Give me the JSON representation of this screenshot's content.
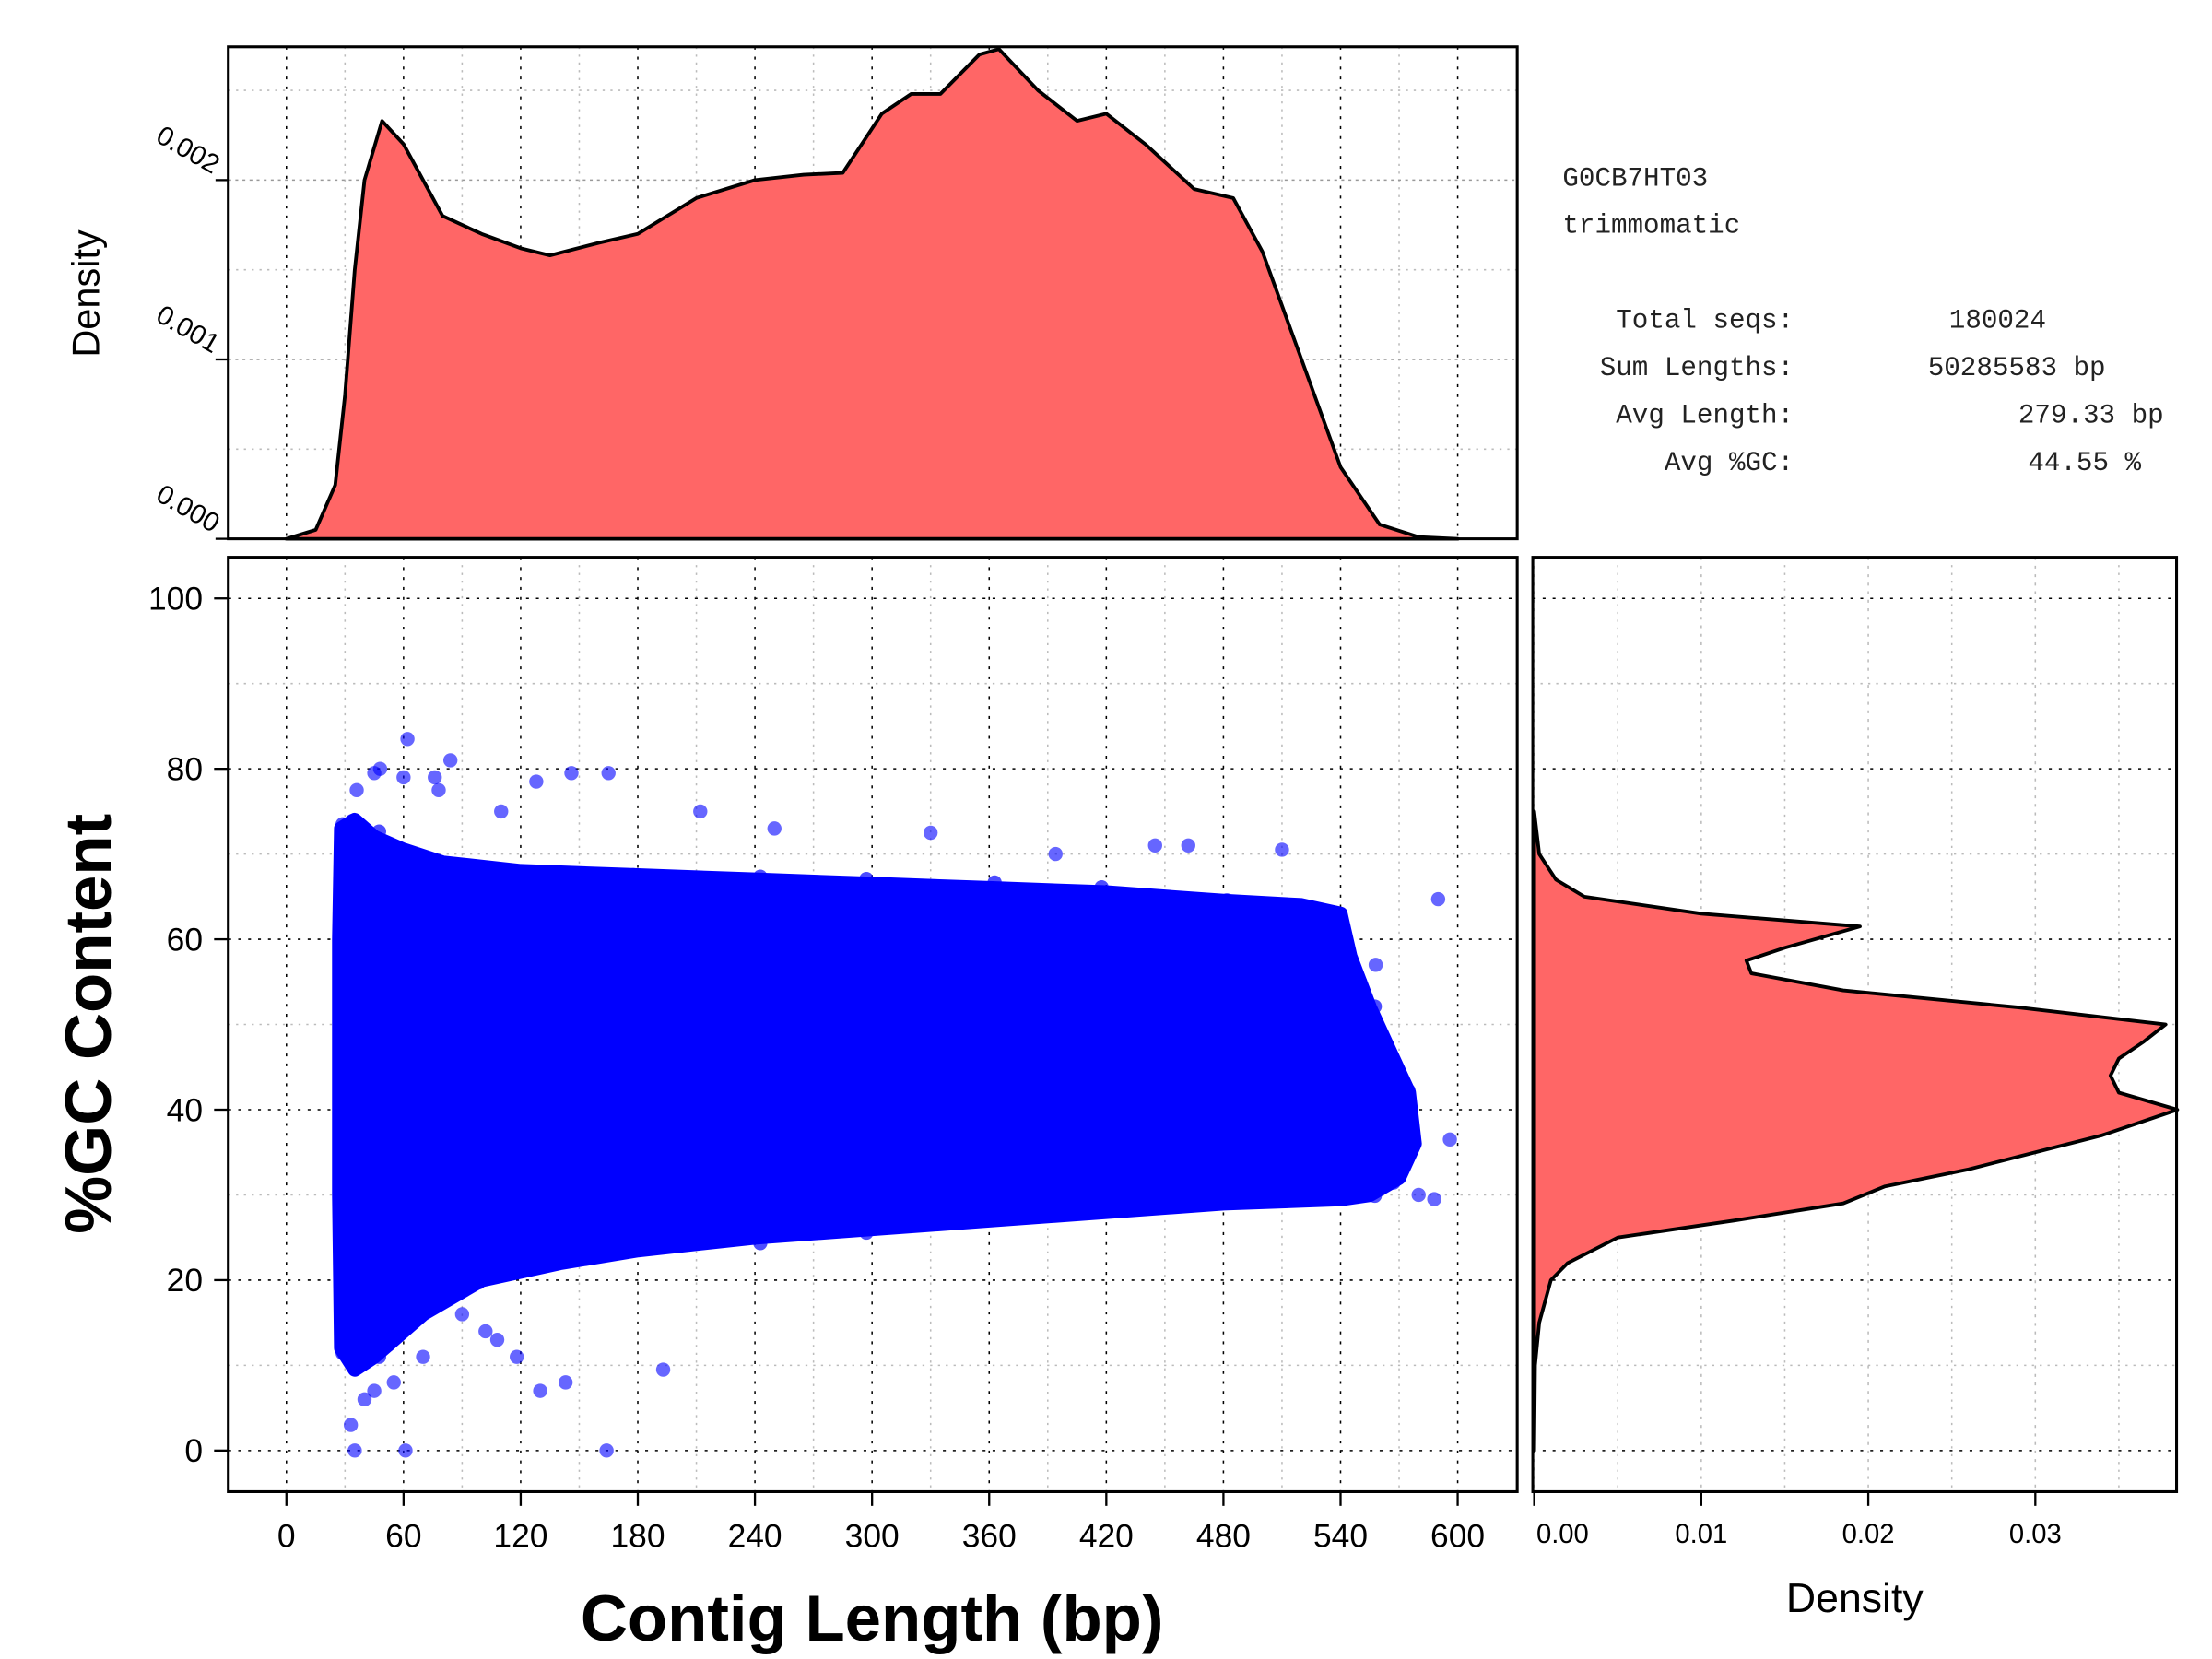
{
  "chart_data": [
    {
      "type": "area",
      "name": "length-density",
      "xlabel": "",
      "ylabel": "Density",
      "xlim": [
        0,
        600
      ],
      "ylim": [
        0,
        0.00273
      ],
      "x_ticks": [
        0,
        60,
        120,
        180,
        240,
        300,
        360,
        420,
        480,
        540,
        600
      ],
      "y_ticks": [
        "0.000",
        "0.001",
        "0.002"
      ],
      "y_tick_values": [
        0,
        0.001,
        0.002
      ],
      "grid": true,
      "fill_color": "#FF6666",
      "x": [
        0,
        15,
        25,
        30,
        35,
        40,
        49,
        60,
        80,
        100,
        120,
        135,
        160,
        180,
        210,
        240,
        265,
        285,
        305,
        320,
        335,
        355,
        365,
        385,
        405,
        420,
        440,
        465,
        485,
        500,
        520,
        540,
        560,
        580,
        600
      ],
      "y": [
        0,
        5e-05,
        0.0003,
        0.0008,
        0.0015,
        0.002,
        0.00233,
        0.0022,
        0.0018,
        0.0017,
        0.00162,
        0.00158,
        0.00165,
        0.0017,
        0.0019,
        0.002,
        0.00203,
        0.00204,
        0.00237,
        0.00248,
        0.00248,
        0.0027,
        0.00273,
        0.0025,
        0.00233,
        0.00237,
        0.0022,
        0.00195,
        0.0019,
        0.0016,
        0.001,
        0.0004,
        8e-05,
        1e-05,
        0
      ]
    },
    {
      "type": "scatter",
      "name": "length-vs-gc",
      "xlabel": "Contig Length (bp)",
      "ylabel": "%GC Content",
      "xlim": [
        -30,
        630
      ],
      "ylim": [
        -5,
        105
      ],
      "x_ticks": [
        0,
        60,
        120,
        180,
        240,
        300,
        360,
        420,
        480,
        540,
        600
      ],
      "y_ticks": [
        0,
        20,
        40,
        60,
        80,
        100
      ],
      "grid": true,
      "point_color": "#0000FF",
      "n_points": 180024,
      "dense_region_envelope": [
        [
          28,
          73
        ],
        [
          35,
          74
        ],
        [
          45,
          72
        ],
        [
          60,
          70.5
        ],
        [
          80,
          69
        ],
        [
          120,
          68
        ],
        [
          180,
          67.5
        ],
        [
          240,
          67
        ],
        [
          300,
          66.5
        ],
        [
          360,
          66
        ],
        [
          420,
          65.5
        ],
        [
          480,
          64.5
        ],
        [
          520,
          64
        ],
        [
          540,
          63
        ],
        [
          545,
          58
        ],
        [
          555,
          52
        ],
        [
          565,
          47
        ],
        [
          575,
          42
        ],
        [
          578,
          36
        ],
        [
          570,
          32
        ],
        [
          555,
          30
        ],
        [
          540,
          29.5
        ],
        [
          480,
          29
        ],
        [
          420,
          28
        ],
        [
          360,
          27
        ],
        [
          300,
          26
        ],
        [
          240,
          25
        ],
        [
          180,
          23.5
        ],
        [
          140,
          22
        ],
        [
          100,
          20
        ],
        [
          70,
          16
        ],
        [
          55,
          13
        ],
        [
          45,
          11
        ],
        [
          35,
          9.5
        ],
        [
          28,
          12
        ],
        [
          27,
          30
        ],
        [
          27,
          60
        ]
      ],
      "outliers": [
        [
          62,
          83.5
        ],
        [
          84,
          81
        ],
        [
          48,
          80
        ],
        [
          45,
          79.5
        ],
        [
          36,
          77.5
        ],
        [
          60,
          79
        ],
        [
          76,
          79
        ],
        [
          78,
          77.5
        ],
        [
          128,
          78.5
        ],
        [
          146,
          79.5
        ],
        [
          165,
          79.5
        ],
        [
          110,
          75
        ],
        [
          212,
          75
        ],
        [
          330,
          72.5
        ],
        [
          250,
          73
        ],
        [
          394,
          70
        ],
        [
          445,
          71
        ],
        [
          462,
          71
        ],
        [
          510,
          70.5
        ],
        [
          590,
          64.7
        ],
        [
          596,
          36.5
        ],
        [
          580,
          30
        ],
        [
          588,
          29.5
        ],
        [
          193,
          9.5
        ],
        [
          164,
          0
        ],
        [
          61,
          0
        ],
        [
          35,
          0
        ],
        [
          33,
          3
        ],
        [
          45,
          7
        ],
        [
          40,
          6
        ],
        [
          55,
          8
        ],
        [
          70,
          11
        ],
        [
          143,
          8
        ],
        [
          130,
          7
        ],
        [
          118,
          11
        ],
        [
          108,
          13
        ],
        [
          102,
          14
        ],
        [
          90,
          16
        ],
        [
          80,
          19
        ],
        [
          560,
          45
        ],
        [
          570,
          40
        ],
        [
          565,
          35
        ],
        [
          550,
          55
        ],
        [
          558,
          57
        ]
      ]
    },
    {
      "type": "area",
      "name": "gc-density",
      "orientation": "horizontal",
      "xlabel": "Density",
      "xlim": [
        0,
        0.0385
      ],
      "x_ticks": [
        "0.00",
        "0.01",
        "0.02",
        "0.03"
      ],
      "x_tick_values": [
        0,
        0.01,
        0.02,
        0.03
      ],
      "grid": true,
      "fill_color": "#FF6666",
      "gc": [
        0,
        10,
        15,
        20,
        22,
        25,
        27,
        29,
        31,
        33,
        35,
        37,
        40,
        42,
        44,
        46,
        48,
        50,
        52,
        54,
        56,
        57.5,
        59,
        61.5,
        63,
        65,
        67,
        70,
        75
      ],
      "density": [
        0,
        5e-05,
        0.0003,
        0.001,
        0.002,
        0.005,
        0.012,
        0.0185,
        0.021,
        0.026,
        0.03,
        0.034,
        0.0385,
        0.035,
        0.0345,
        0.035,
        0.0365,
        0.0378,
        0.029,
        0.0185,
        0.013,
        0.0127,
        0.015,
        0.0195,
        0.01,
        0.003,
        0.0013,
        0.0003,
        0
      ]
    }
  ],
  "stats": {
    "sample": "G0CB7HT03",
    "tool": "trimmomatic",
    "rows": [
      {
        "label": "Total seqs:",
        "value": "180024"
      },
      {
        "label": "Sum Lengths:",
        "value": "50285583 bp"
      },
      {
        "label": "Avg Length:",
        "value": "279.33 bp"
      },
      {
        "label": "Avg %GC:",
        "value": "44.55 %"
      }
    ]
  }
}
